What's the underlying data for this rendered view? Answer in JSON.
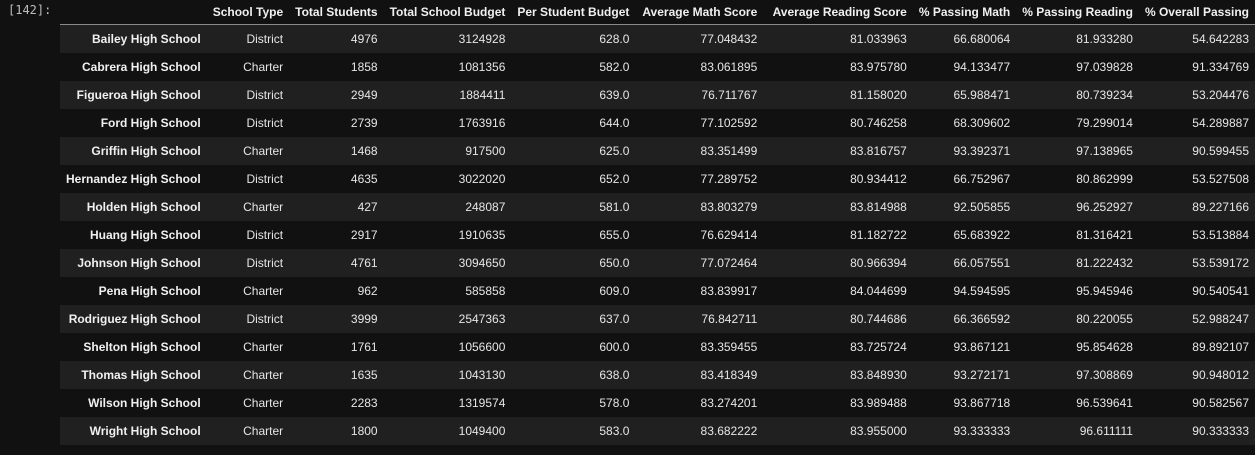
{
  "cell": {
    "prompt": "[142]:"
  },
  "table": {
    "columns": [
      "",
      "School Type",
      "Total Students",
      "Total School Budget",
      "Per Student Budget",
      "Average Math Score",
      "Average Reading Score",
      "% Passing Math",
      "% Passing Reading",
      "% Overall Passing"
    ],
    "rows": [
      [
        "Bailey High School",
        "District",
        "4976",
        "3124928",
        "628.0",
        "77.048432",
        "81.033963",
        "66.680064",
        "81.933280",
        "54.642283"
      ],
      [
        "Cabrera High School",
        "Charter",
        "1858",
        "1081356",
        "582.0",
        "83.061895",
        "83.975780",
        "94.133477",
        "97.039828",
        "91.334769"
      ],
      [
        "Figueroa High School",
        "District",
        "2949",
        "1884411",
        "639.0",
        "76.711767",
        "81.158020",
        "65.988471",
        "80.739234",
        "53.204476"
      ],
      [
        "Ford High School",
        "District",
        "2739",
        "1763916",
        "644.0",
        "77.102592",
        "80.746258",
        "68.309602",
        "79.299014",
        "54.289887"
      ],
      [
        "Griffin High School",
        "Charter",
        "1468",
        "917500",
        "625.0",
        "83.351499",
        "83.816757",
        "93.392371",
        "97.138965",
        "90.599455"
      ],
      [
        "Hernandez High School",
        "District",
        "4635",
        "3022020",
        "652.0",
        "77.289752",
        "80.934412",
        "66.752967",
        "80.862999",
        "53.527508"
      ],
      [
        "Holden High School",
        "Charter",
        "427",
        "248087",
        "581.0",
        "83.803279",
        "83.814988",
        "92.505855",
        "96.252927",
        "89.227166"
      ],
      [
        "Huang High School",
        "District",
        "2917",
        "1910635",
        "655.0",
        "76.629414",
        "81.182722",
        "65.683922",
        "81.316421",
        "53.513884"
      ],
      [
        "Johnson High School",
        "District",
        "4761",
        "3094650",
        "650.0",
        "77.072464",
        "80.966394",
        "66.057551",
        "81.222432",
        "53.539172"
      ],
      [
        "Pena High School",
        "Charter",
        "962",
        "585858",
        "609.0",
        "83.839917",
        "84.044699",
        "94.594595",
        "95.945946",
        "90.540541"
      ],
      [
        "Rodriguez High School",
        "District",
        "3999",
        "2547363",
        "637.0",
        "76.842711",
        "80.744686",
        "66.366592",
        "80.220055",
        "52.988247"
      ],
      [
        "Shelton High School",
        "Charter",
        "1761",
        "1056600",
        "600.0",
        "83.359455",
        "83.725724",
        "93.867121",
        "95.854628",
        "89.892107"
      ],
      [
        "Thomas High School",
        "Charter",
        "1635",
        "1043130",
        "638.0",
        "83.418349",
        "83.848930",
        "93.272171",
        "97.308869",
        "90.948012"
      ],
      [
        "Wilson High School",
        "Charter",
        "2283",
        "1319574",
        "578.0",
        "83.274201",
        "83.989488",
        "93.867718",
        "96.539641",
        "90.582567"
      ],
      [
        "Wright High School",
        "Charter",
        "1800",
        "1049400",
        "583.0",
        "83.682222",
        "83.955000",
        "93.333333",
        "96.611111",
        "90.333333"
      ]
    ]
  }
}
